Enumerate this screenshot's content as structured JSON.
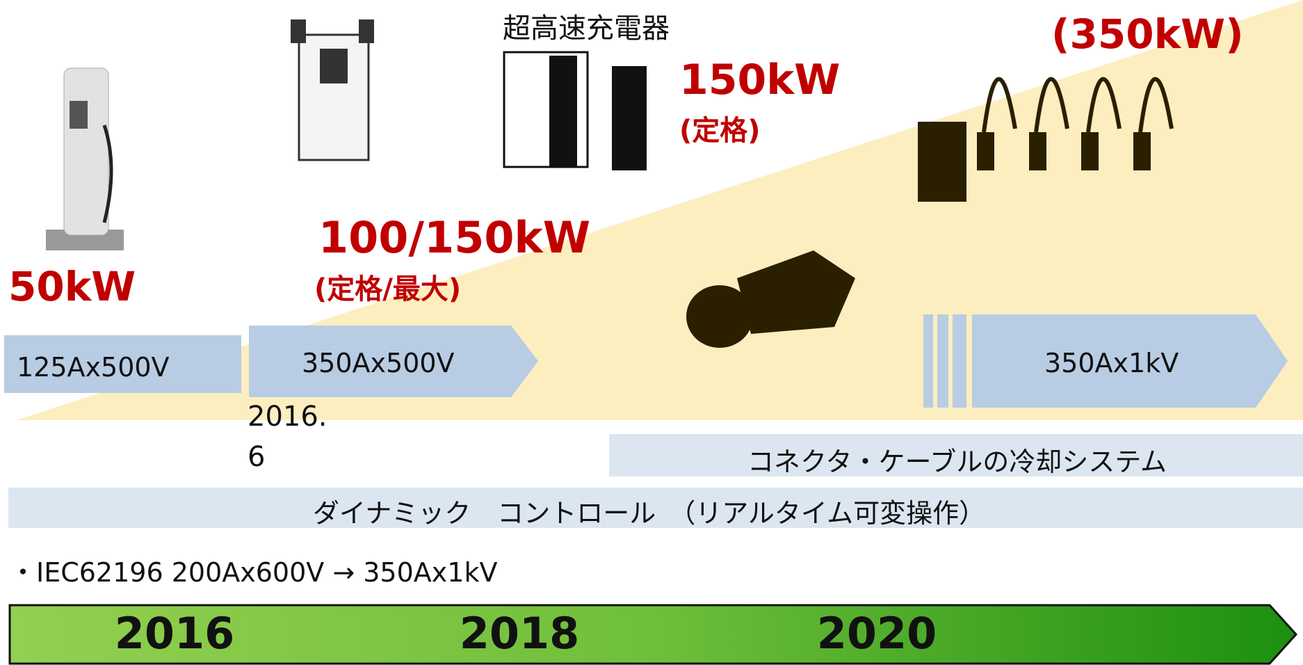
{
  "header": {
    "title": "超高速充電器"
  },
  "ratings": [
    {
      "power": "50kW"
    },
    {
      "power": "100/150kW",
      "note": "(定格/最大)"
    },
    {
      "power": "150kW",
      "note": "(定格)"
    },
    {
      "power": "(350kW)"
    }
  ],
  "specs": [
    "125Ax500V",
    "350Ax500V",
    "350Ax1kV"
  ],
  "date_note": "2016.6",
  "bars": [
    "コネクタ・ケーブルの冷却システム",
    "ダイナミック　コントロール　（リアルタイム可変操作）"
  ],
  "standard_note": "・IEC62196 200Ax600V → 350Ax1kV",
  "timeline": [
    "2016",
    "2018",
    "2020"
  ]
}
